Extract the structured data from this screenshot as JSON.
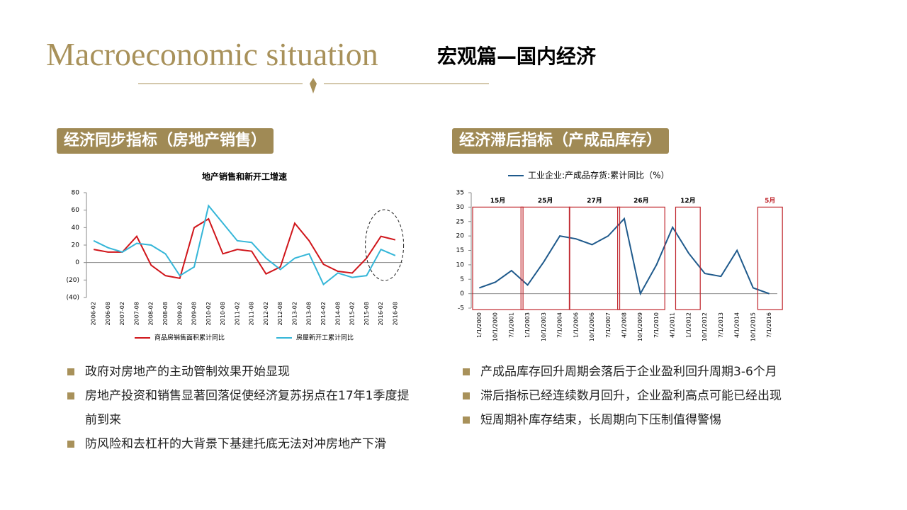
{
  "header": {
    "title": "Macroeconomic situation",
    "subtitle": "宏观篇—国内经济"
  },
  "sections": [
    {
      "label": "经济同步指标（房地产销售）",
      "bullets": [
        "政府对房地产的主动管制效果开始显现",
        "房地产投资和销售显著回落促使经济复苏拐点在17年1季度提前到来",
        "防风险和去杠杆的大背景下基建托底无法对冲房地产下滑"
      ]
    },
    {
      "label": "经济滞后指标（产成品库存）",
      "bullets": [
        "产成品库存回升周期会落后于企业盈利回升周期3-6个月",
        "滞后指标已经连续数月回升，企业盈利高点可能已经出现",
        "短周期补库存结束，长周期向下压制值得警惕"
      ]
    }
  ],
  "chart_data": [
    {
      "type": "line",
      "title": "地产销售和新开工增速",
      "categories": [
        "2006-02",
        "2006-08",
        "2007-02",
        "2007-08",
        "2008-02",
        "2008-08",
        "2009-02",
        "2009-08",
        "2010-02",
        "2010-08",
        "2011-02",
        "2011-08",
        "2012-02",
        "2012-08",
        "2013-02",
        "2013-08",
        "2014-02",
        "2014-08",
        "2015-02",
        "2015-08",
        "2016-02",
        "2016-08"
      ],
      "series": [
        {
          "name": "商品房销售面积累计同比",
          "color": "#d0161b",
          "values": [
            15,
            12,
            12,
            30,
            -3,
            -15,
            -18,
            40,
            50,
            10,
            15,
            13,
            -13,
            -5,
            45,
            25,
            -2,
            -10,
            -12,
            5,
            30,
            26
          ]
        },
        {
          "name": "房屋新开工累计同比",
          "color": "#35b6d8",
          "values": [
            25,
            17,
            12,
            22,
            20,
            10,
            -15,
            -5,
            65,
            45,
            25,
            23,
            5,
            -8,
            5,
            10,
            -25,
            -12,
            -17,
            -15,
            15,
            8
          ]
        }
      ],
      "ylim": [
        -40,
        80
      ],
      "yticks": [
        80,
        60,
        40,
        20,
        0,
        {
          "value": -20,
          "label": "(20)"
        },
        {
          "value": -40,
          "label": "(40)"
        }
      ]
    },
    {
      "type": "line",
      "categories": [
        "1/1/2000",
        "10/1/2000",
        "7/1/2001",
        "1/1/2003",
        "10/1/2003",
        "7/1/2004",
        "1/1/2006",
        "10/1/2006",
        "7/1/2007",
        "4/1/2008",
        "10/1/2009",
        "7/1/2010",
        "4/1/2011",
        "1/1/2012",
        "10/1/2012",
        "7/1/2013",
        "4/1/2014",
        "10/1/2015",
        "7/1/2016"
      ],
      "series": [
        {
          "name": "工业企业:产成品存货:累计同比（%）",
          "color": "#1f5a8c",
          "values": [
            2,
            4,
            8,
            3,
            11,
            20,
            19,
            17,
            20,
            26,
            0,
            10,
            23,
            14,
            7,
            6,
            15,
            2,
            0
          ]
        }
      ],
      "ylim": [
        -5,
        35
      ],
      "yticks": [
        35,
        30,
        25,
        20,
        15,
        10,
        5,
        0,
        -5
      ],
      "annotations": [
        "15月",
        "25月",
        "27月",
        "26月",
        "12月",
        "5月"
      ]
    }
  ]
}
